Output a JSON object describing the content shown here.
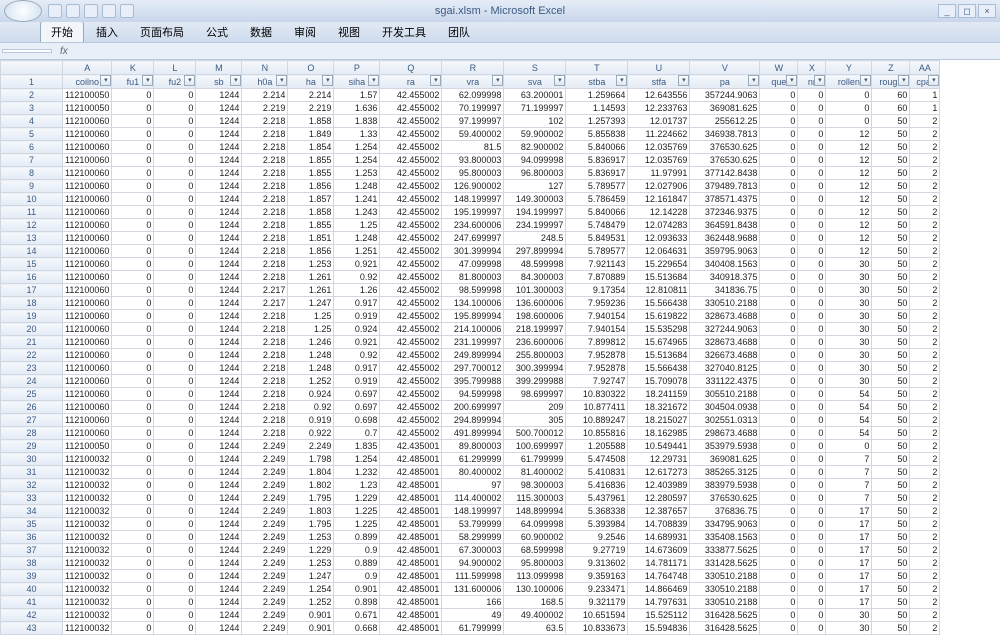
{
  "app": {
    "title": "sgai.xlsm - Microsoft Excel",
    "qat_icons": [
      "save-icon",
      "undo-icon",
      "redo-icon",
      "print-icon",
      "open-icon"
    ],
    "win_min": "_",
    "win_max": "◻",
    "win_close": "×"
  },
  "ribbon": {
    "tabs": [
      "开始",
      "插入",
      "页面布局",
      "公式",
      "数据",
      "审阅",
      "视图",
      "开发工具",
      "团队"
    ],
    "active": 0
  },
  "formula": {
    "name_box": "",
    "fx": "fx"
  },
  "columns": {
    "letters": [
      "A",
      "K",
      "L",
      "M",
      "N",
      "O",
      "P",
      "Q",
      "R",
      "S",
      "T",
      "U",
      "V",
      "W",
      "X",
      "Y",
      "Z",
      "AA"
    ],
    "headers": [
      "coilno",
      "fu1",
      "fu2",
      "sb",
      "h0a",
      "ha",
      "siha",
      "ra",
      "vra",
      "sva",
      "stba",
      "stfa",
      "pa",
      "que",
      "nr",
      "rollen",
      "rough",
      "cpat"
    ],
    "widths": [
      62,
      42,
      42,
      42,
      46,
      46,
      46,
      46,
      62,
      62,
      62,
      62,
      62,
      70,
      38,
      28,
      46,
      38,
      30
    ]
  },
  "rows": [
    [
      "112100050",
      0,
      0,
      1244,
      2.214,
      2.214,
      1.57,
      42.455002,
      62.099998,
      63.200001,
      1.259664,
      12.643556,
      357244.9063,
      0,
      0,
      0,
      60,
      1
    ],
    [
      "112100050",
      0,
      0,
      1244,
      2.219,
      2.219,
      1.636,
      42.455002,
      70.199997,
      71.199997,
      1.14593,
      12.233763,
      369081.625,
      0,
      0,
      0,
      60,
      1
    ],
    [
      "112100060",
      0,
      0,
      1244,
      2.218,
      1.858,
      1.838,
      42.455002,
      97.199997,
      102,
      1.257393,
      12.01737,
      255612.25,
      0,
      0,
      0,
      50,
      2
    ],
    [
      "112100060",
      0,
      0,
      1244,
      2.218,
      1.849,
      1.33,
      42.455002,
      59.400002,
      59.900002,
      5.855838,
      11.224662,
      346938.7813,
      0,
      0,
      12,
      50,
      2
    ],
    [
      "112100060",
      0,
      0,
      1244,
      2.218,
      1.854,
      1.254,
      42.455002,
      81.5,
      82.900002,
      5.840066,
      12.035769,
      376530.625,
      0,
      0,
      12,
      50,
      2
    ],
    [
      "112100060",
      0,
      0,
      1244,
      2.218,
      1.855,
      1.254,
      42.455002,
      93.800003,
      94.099998,
      5.836917,
      12.035769,
      376530.625,
      0,
      0,
      12,
      50,
      2
    ],
    [
      "112100060",
      0,
      0,
      1244,
      2.218,
      1.855,
      1.253,
      42.455002,
      95.800003,
      96.800003,
      5.836917,
      11.97991,
      377142.8438,
      0,
      0,
      12,
      50,
      2
    ],
    [
      "112100060",
      0,
      0,
      1244,
      2.218,
      1.856,
      1.248,
      42.455002,
      126.900002,
      127,
      5.789577,
      12.027906,
      379489.7813,
      0,
      0,
      12,
      50,
      2
    ],
    [
      "112100060",
      0,
      0,
      1244,
      2.218,
      1.857,
      1.241,
      42.455002,
      148.199997,
      149.300003,
      5.786459,
      12.161847,
      378571.4375,
      0,
      0,
      12,
      50,
      2
    ],
    [
      "112100060",
      0,
      0,
      1244,
      2.218,
      1.858,
      1.243,
      42.455002,
      195.199997,
      194.199997,
      5.840066,
      12.14228,
      372346.9375,
      0,
      0,
      12,
      50,
      2
    ],
    [
      "112100060",
      0,
      0,
      1244,
      2.218,
      1.855,
      1.25,
      42.455002,
      234.600006,
      234.199997,
      5.748479,
      12.074283,
      364591.8438,
      0,
      0,
      12,
      50,
      2
    ],
    [
      "112100060",
      0,
      0,
      1244,
      2.218,
      1.851,
      1.248,
      42.455002,
      247.699997,
      248.5,
      5.849531,
      12.093633,
      362448.9688,
      0,
      0,
      12,
      50,
      2
    ],
    [
      "112100060",
      0,
      0,
      1244,
      2.218,
      1.856,
      1.251,
      42.455002,
      301.399994,
      297.899994,
      5.789577,
      12.064631,
      359795.9063,
      0,
      0,
      12,
      50,
      2
    ],
    [
      "112100060",
      0,
      0,
      1244,
      2.218,
      1.253,
      0.921,
      42.455002,
      47.099998,
      48.599998,
      7.921143,
      15.229654,
      340408.1563,
      0,
      0,
      30,
      50,
      2
    ],
    [
      "112100060",
      0,
      0,
      1244,
      2.218,
      1.261,
      0.92,
      42.455002,
      81.800003,
      84.300003,
      7.870889,
      15.513684,
      340918.375,
      0,
      0,
      30,
      50,
      2
    ],
    [
      "112100060",
      0,
      0,
      1244,
      2.217,
      1.261,
      1.26,
      42.455002,
      98.599998,
      101.300003,
      9.17354,
      12.810811,
      341836.75,
      0,
      0,
      30,
      50,
      2
    ],
    [
      "112100060",
      0,
      0,
      1244,
      2.217,
      1.247,
      0.917,
      42.455002,
      134.100006,
      136.600006,
      7.959236,
      15.566438,
      330510.2188,
      0,
      0,
      30,
      50,
      2
    ],
    [
      "112100060",
      0,
      0,
      1244,
      2.218,
      1.25,
      0.919,
      42.455002,
      195.899994,
      198.600006,
      7.940154,
      15.619822,
      328673.4688,
      0,
      0,
      30,
      50,
      2
    ],
    [
      "112100060",
      0,
      0,
      1244,
      2.218,
      1.25,
      0.924,
      42.455002,
      214.100006,
      218.199997,
      7.940154,
      15.535298,
      327244.9063,
      0,
      0,
      30,
      50,
      2
    ],
    [
      "112100060",
      0,
      0,
      1244,
      2.218,
      1.246,
      0.921,
      42.455002,
      231.199997,
      236.600006,
      7.899812,
      15.674965,
      328673.4688,
      0,
      0,
      30,
      50,
      2
    ],
    [
      "112100060",
      0,
      0,
      1244,
      2.218,
      1.248,
      0.92,
      42.455002,
      249.899994,
      255.800003,
      7.952878,
      15.513684,
      326673.4688,
      0,
      0,
      30,
      50,
      2
    ],
    [
      "112100060",
      0,
      0,
      1244,
      2.218,
      1.248,
      0.917,
      42.455002,
      297.700012,
      300.399994,
      7.952878,
      15.566438,
      327040.8125,
      0,
      0,
      30,
      50,
      2
    ],
    [
      "112100060",
      0,
      0,
      1244,
      2.218,
      1.252,
      0.919,
      42.455002,
      395.799988,
      399.299988,
      7.92747,
      15.709078,
      331122.4375,
      0,
      0,
      30,
      50,
      2
    ],
    [
      "112100060",
      0,
      0,
      1244,
      2.218,
      0.924,
      0.697,
      42.455002,
      94.599998,
      98.699997,
      10.830322,
      18.241159,
      305510.2188,
      0,
      0,
      54,
      50,
      2
    ],
    [
      "112100060",
      0,
      0,
      1244,
      2.218,
      0.92,
      0.697,
      42.455002,
      200.699997,
      209,
      10.877411,
      18.321672,
      304504.0938,
      0,
      0,
      54,
      50,
      2
    ],
    [
      "112100060",
      0,
      0,
      1244,
      2.218,
      0.919,
      0.698,
      42.455002,
      294.899994,
      305,
      10.889247,
      18.215027,
      302551.0313,
      0,
      0,
      54,
      50,
      2
    ],
    [
      "112100060",
      0,
      0,
      1244,
      2.218,
      0.922,
      0.7,
      42.455002,
      491.899994,
      500.700012,
      10.855816,
      18.162985,
      298673.4688,
      0,
      0,
      54,
      50,
      2
    ],
    [
      "112100050",
      0,
      0,
      1244,
      2.249,
      2.249,
      1.835,
      42.435001,
      89.800003,
      100.699997,
      1.205588,
      10.549441,
      353979.5938,
      0,
      0,
      0,
      50,
      2
    ],
    [
      "112100032",
      0,
      0,
      1244,
      2.249,
      1.798,
      1.254,
      42.485001,
      61.299999,
      61.799999,
      5.474508,
      12.29731,
      369081.625,
      0,
      0,
      7,
      50,
      2
    ],
    [
      "112100032",
      0,
      0,
      1244,
      2.249,
      1.804,
      1.232,
      42.485001,
      80.400002,
      81.400002,
      5.410831,
      12.617273,
      385265.3125,
      0,
      0,
      7,
      50,
      2
    ],
    [
      "112100032",
      0,
      0,
      1244,
      2.249,
      1.802,
      1.23,
      42.485001,
      97,
      98.300003,
      5.416836,
      12.403989,
      383979.5938,
      0,
      0,
      7,
      50,
      2
    ],
    [
      "112100032",
      0,
      0,
      1244,
      2.249,
      1.795,
      1.229,
      42.485001,
      114.400002,
      115.300003,
      5.437961,
      12.280597,
      376530.625,
      0,
      0,
      7,
      50,
      2
    ],
    [
      "112100032",
      0,
      0,
      1244,
      2.249,
      1.803,
      1.225,
      42.485001,
      148.199997,
      148.899994,
      5.368338,
      12.387657,
      376836.75,
      0,
      0,
      17,
      50,
      2
    ],
    [
      "112100032",
      0,
      0,
      1244,
      2.249,
      1.795,
      1.225,
      42.485001,
      53.799999,
      64.099998,
      5.393984,
      14.708839,
      334795.9063,
      0,
      0,
      17,
      50,
      2
    ],
    [
      "112100032",
      0,
      0,
      1244,
      2.249,
      1.253,
      0.899,
      42.485001,
      58.299999,
      60.900002,
      9.2546,
      14.689931,
      335408.1563,
      0,
      0,
      17,
      50,
      2
    ],
    [
      "112100032",
      0,
      0,
      1244,
      2.249,
      1.229,
      0.9,
      42.485001,
      67.300003,
      68.599998,
      9.27719,
      14.673609,
      333877.5625,
      0,
      0,
      17,
      50,
      2
    ],
    [
      "112100032",
      0,
      0,
      1244,
      2.249,
      1.253,
      0.889,
      42.485001,
      94.900002,
      95.800003,
      9.313602,
      14.781171,
      331428.5625,
      0,
      0,
      17,
      50,
      2
    ],
    [
      "112100032",
      0,
      0,
      1244,
      2.249,
      1.247,
      0.9,
      42.485001,
      111.599998,
      113.099998,
      9.359163,
      14.764748,
      330510.2188,
      0,
      0,
      17,
      50,
      2
    ],
    [
      "112100032",
      0,
      0,
      1244,
      2.249,
      1.254,
      0.901,
      42.485001,
      131.600006,
      130.100006,
      9.233471,
      14.866469,
      330510.2188,
      0,
      0,
      17,
      50,
      2
    ],
    [
      "112100032",
      0,
      0,
      1244,
      2.249,
      1.252,
      0.898,
      42.485001,
      166,
      168.5,
      9.321179,
      14.797631,
      330510.2188,
      0,
      0,
      17,
      50,
      2
    ],
    [
      "112100032",
      0,
      0,
      1244,
      2.249,
      0.901,
      0.671,
      42.485001,
      49,
      49.400002,
      10.651594,
      15.525112,
      316428.5625,
      0,
      0,
      30,
      50,
      2
    ],
    [
      "112100032",
      0,
      0,
      1244,
      2.249,
      0.901,
      0.668,
      42.485001,
      61.799999,
      63.5,
      10.833673,
      15.594836,
      316428.5625,
      0,
      0,
      30,
      50,
      2
    ]
  ],
  "colors": {
    "titlebar_bg_top": "#e6edf7",
    "titlebar_bg_bot": "#c9d7eb",
    "header_bg_top": "#f5f8fc",
    "header_bg_bot": "#e3ebf5",
    "grid_border": "#d0d7e0",
    "text": "#222222"
  }
}
